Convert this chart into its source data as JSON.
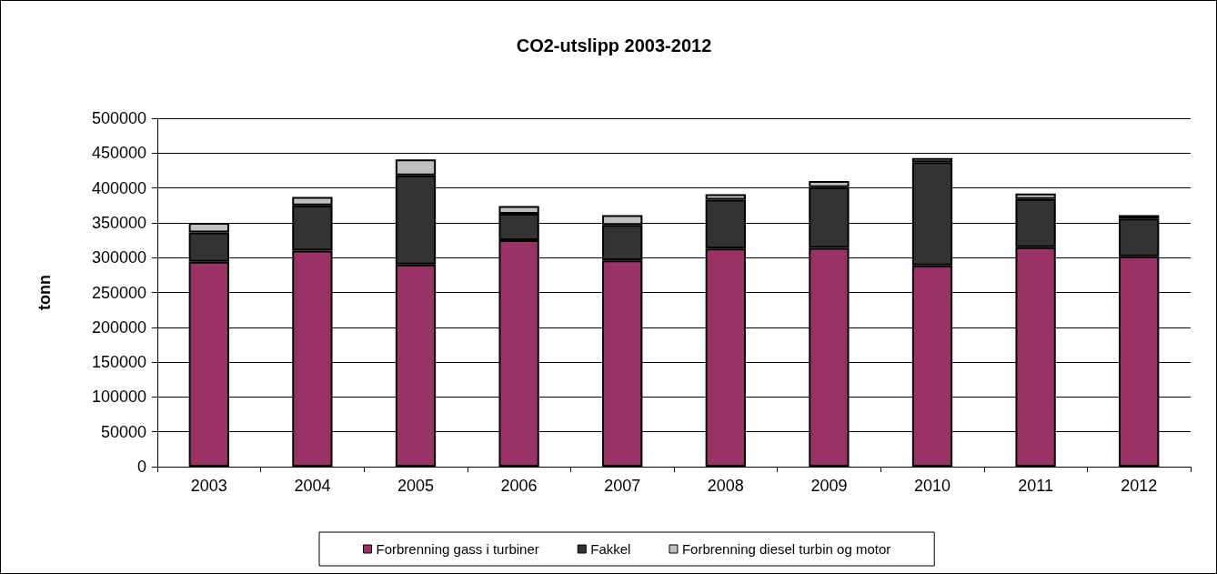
{
  "chart_data": {
    "type": "bar",
    "stacked": true,
    "title": "CO2-utslipp 2003-2012",
    "ylabel": "tonn",
    "categories": [
      "2003",
      "2004",
      "2005",
      "2006",
      "2007",
      "2008",
      "2009",
      "2010",
      "2011",
      "2012"
    ],
    "series": [
      {
        "name": "Forbrenning gass i turbiner",
        "color": "#993366",
        "values": [
          294000,
          310000,
          290000,
          325000,
          296000,
          313000,
          314000,
          289000,
          315000,
          302000
        ]
      },
      {
        "name": "Fakkel",
        "color": "#333333",
        "values": [
          42000,
          65000,
          128000,
          38000,
          51000,
          70000,
          87000,
          148000,
          69000,
          54000
        ]
      },
      {
        "name": "Forbrenning diesel turbin og motor",
        "color": "#c0c0c0",
        "values": [
          14000,
          12000,
          23000,
          11000,
          14000,
          8000,
          9000,
          6000,
          8000,
          5000
        ]
      }
    ],
    "ylim": [
      0,
      500000
    ],
    "yticks": [
      0,
      50000,
      100000,
      150000,
      200000,
      250000,
      300000,
      350000,
      400000,
      450000,
      500000
    ],
    "grid": "y",
    "legend": "bottom"
  }
}
